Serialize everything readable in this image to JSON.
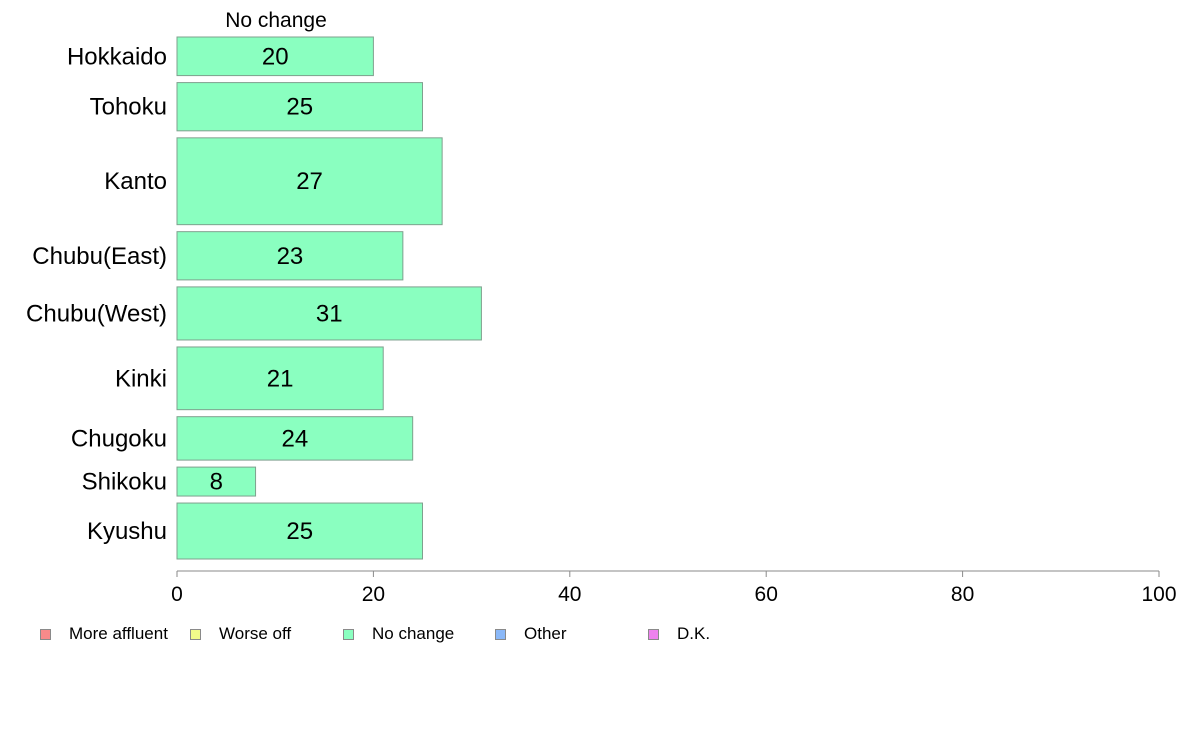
{
  "chart_data": {
    "type": "bar",
    "orientation": "horizontal",
    "title": "No change",
    "categories": [
      "Hokkaido",
      "Tohoku",
      "Kanto",
      "Chubu(East)",
      "Chubu(West)",
      "Kinki",
      "Chugoku",
      "Shikoku",
      "Kyushu"
    ],
    "series": [
      {
        "name": "No change",
        "values": [
          20,
          25,
          27,
          23,
          31,
          21,
          24,
          8,
          25
        ],
        "color": "#8affc0"
      }
    ],
    "relative_bar_widths": [
      4,
      5,
      9,
      5,
      5.5,
      6.5,
      4.5,
      3,
      5.8
    ],
    "xlim": [
      0,
      100
    ],
    "xticks": [
      0,
      20,
      40,
      60,
      80,
      100
    ],
    "grid": false,
    "legend_position": "bottom-left",
    "legend": [
      {
        "label": "More affluent",
        "color": "#f88a8a"
      },
      {
        "label": "Worse off",
        "color": "#f2fb8a"
      },
      {
        "label": "No change",
        "color": "#8affc0"
      },
      {
        "label": "Other",
        "color": "#8ab8f8"
      },
      {
        "label": "D.K.",
        "color": "#ee82ee"
      }
    ]
  }
}
